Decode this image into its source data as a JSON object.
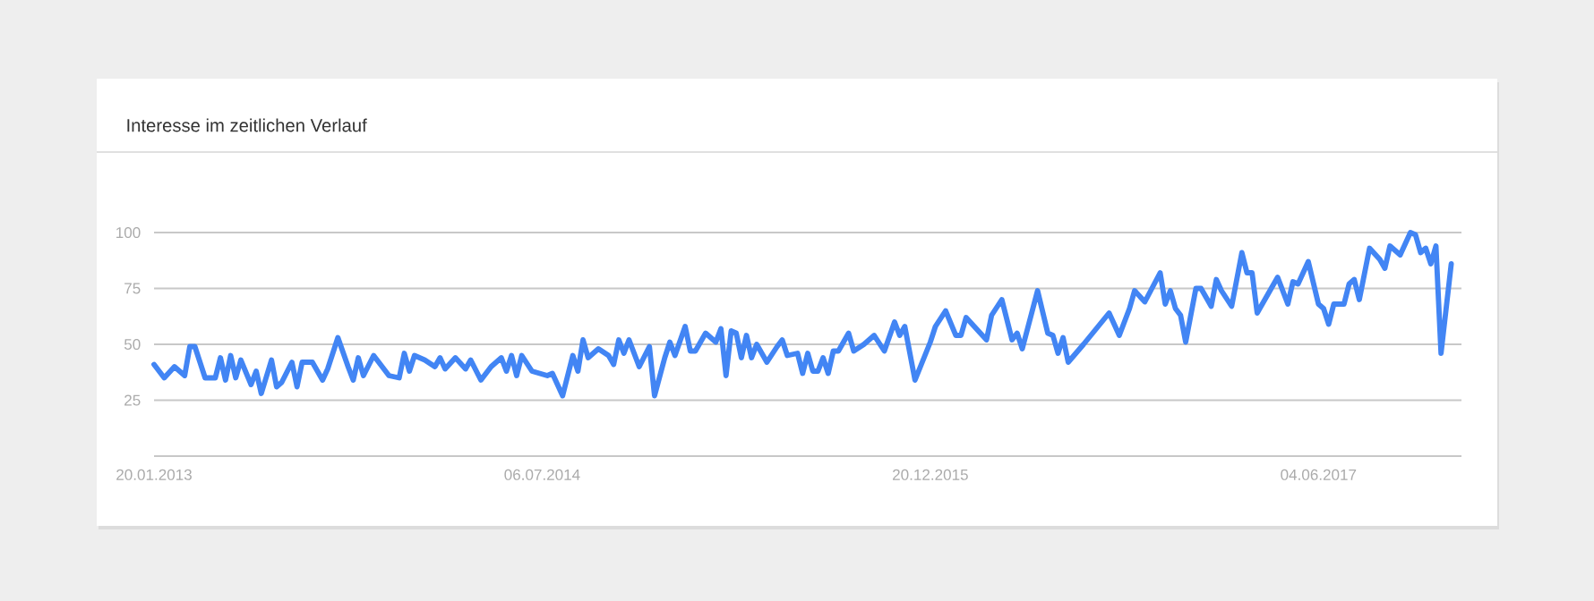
{
  "chart_data": {
    "type": "line",
    "title": "Interesse im zeitlichen Verlauf",
    "x": [
      "2013-01-20",
      "2013-02-03",
      "2013-02-17",
      "2013-03-03",
      "2013-03-10",
      "2013-03-17",
      "2013-03-31",
      "2013-04-14",
      "2013-04-21",
      "2013-04-28",
      "2013-05-05",
      "2013-05-12",
      "2013-05-19",
      "2013-06-02",
      "2013-06-09",
      "2013-06-16",
      "2013-06-30",
      "2013-07-07",
      "2013-07-14",
      "2013-07-28",
      "2013-08-04",
      "2013-08-11",
      "2013-08-25",
      "2013-09-08",
      "2013-09-15",
      "2013-09-29",
      "2013-10-13",
      "2013-10-20",
      "2013-10-27",
      "2013-11-03",
      "2013-11-17",
      "2013-12-08",
      "2013-12-22",
      "2013-12-29",
      "2014-01-05",
      "2014-01-12",
      "2014-01-26",
      "2014-02-09",
      "2014-02-16",
      "2014-02-23",
      "2014-03-09",
      "2014-03-23",
      "2014-03-30",
      "2014-04-13",
      "2014-04-27",
      "2014-05-11",
      "2014-05-18",
      "2014-05-25",
      "2014-06-01",
      "2014-06-08",
      "2014-06-22",
      "2014-07-13",
      "2014-07-20",
      "2014-08-03",
      "2014-08-17",
      "2014-08-24",
      "2014-08-31",
      "2014-09-07",
      "2014-09-21",
      "2014-10-05",
      "2014-10-12",
      "2014-10-19",
      "2014-10-26",
      "2014-11-02",
      "2014-11-16",
      "2014-11-30",
      "2014-12-07",
      "2014-12-21",
      "2014-12-28",
      "2015-01-04",
      "2015-01-18",
      "2015-01-25",
      "2015-02-01",
      "2015-02-15",
      "2015-03-01",
      "2015-03-08",
      "2015-03-15",
      "2015-03-22",
      "2015-03-29",
      "2015-04-05",
      "2015-04-12",
      "2015-04-19",
      "2015-04-26",
      "2015-05-10",
      "2015-05-24",
      "2015-05-31",
      "2015-06-07",
      "2015-06-21",
      "2015-06-28",
      "2015-07-05",
      "2015-07-12",
      "2015-07-19",
      "2015-07-26",
      "2015-08-02",
      "2015-08-09",
      "2015-08-16",
      "2015-08-30",
      "2015-09-06",
      "2015-09-20",
      "2015-10-04",
      "2015-10-18",
      "2015-11-01",
      "2015-11-08",
      "2015-11-15",
      "2015-11-29",
      "2015-12-20",
      "2015-12-27",
      "2016-01-10",
      "2016-01-24",
      "2016-01-31",
      "2016-02-07",
      "2016-03-06",
      "2016-03-13",
      "2016-03-27",
      "2016-04-10",
      "2016-04-17",
      "2016-04-24",
      "2016-05-15",
      "2016-05-29",
      "2016-06-05",
      "2016-06-12",
      "2016-06-19",
      "2016-06-26",
      "2016-07-17",
      "2016-08-21",
      "2016-09-04",
      "2016-09-18",
      "2016-09-25",
      "2016-10-09",
      "2016-10-30",
      "2016-11-06",
      "2016-11-13",
      "2016-11-20",
      "2016-11-27",
      "2016-12-04",
      "2016-12-18",
      "2016-12-25",
      "2017-01-08",
      "2017-01-15",
      "2017-01-22",
      "2017-02-05",
      "2017-02-19",
      "2017-02-26",
      "2017-03-05",
      "2017-03-12",
      "2017-04-02",
      "2017-04-09",
      "2017-04-23",
      "2017-04-30",
      "2017-05-07",
      "2017-05-21",
      "2017-06-04",
      "2017-06-11",
      "2017-06-18",
      "2017-06-25",
      "2017-07-09",
      "2017-07-16",
      "2017-07-23",
      "2017-07-30",
      "2017-08-13",
      "2017-08-27",
      "2017-09-03",
      "2017-09-10",
      "2017-09-24",
      "2017-10-08",
      "2017-10-15",
      "2017-10-22",
      "2017-10-29",
      "2017-11-05",
      "2017-11-12",
      "2017-11-19",
      "2017-12-03"
    ],
    "series": [
      {
        "color": "#4285f4",
        "values": [
          41,
          35,
          40,
          36,
          49,
          49,
          35,
          35,
          44,
          34,
          45,
          35,
          43,
          32,
          38,
          28,
          43,
          31,
          33,
          42,
          31,
          42,
          42,
          34,
          39,
          53,
          40,
          34,
          44,
          36,
          45,
          36,
          35,
          46,
          38,
          45,
          43,
          40,
          44,
          39,
          44,
          39,
          43,
          34,
          40,
          44,
          38,
          45,
          36,
          45,
          38,
          36,
          37,
          27,
          45,
          38,
          52,
          44,
          48,
          45,
          41,
          52,
          46,
          52,
          40,
          49,
          27,
          44,
          51,
          45,
          58,
          47,
          47,
          55,
          51,
          57,
          36,
          56,
          55,
          44,
          54,
          44,
          50,
          42,
          49,
          52,
          45,
          46,
          37,
          46,
          38,
          38,
          44,
          37,
          47,
          47,
          55,
          47,
          50,
          54,
          47,
          60,
          54,
          58,
          34,
          51,
          58,
          65,
          54,
          54,
          62,
          52,
          63,
          70,
          52,
          55,
          48,
          74,
          55,
          54,
          46,
          53,
          42,
          50,
          64,
          54,
          66,
          74,
          69,
          82,
          68,
          74,
          66,
          63,
          51,
          75,
          75,
          67,
          79,
          74,
          67,
          91,
          82,
          82,
          64,
          76,
          80,
          68,
          78,
          77,
          87,
          68,
          66,
          59,
          68,
          68,
          77,
          79,
          70,
          93,
          88,
          84,
          94,
          90,
          100,
          99,
          91,
          93,
          86,
          94,
          46,
          86
        ]
      }
    ],
    "xlim": [
      "2013-01-20",
      "2017-12-17"
    ],
    "xticks": [
      {
        "value": "2013-01-20",
        "label": "20.01.2013"
      },
      {
        "value": "2014-07-06",
        "label": "06.07.2014"
      },
      {
        "value": "2015-12-20",
        "label": "20.12.2015"
      },
      {
        "value": "2017-06-04",
        "label": "04.06.2017"
      }
    ],
    "ylim": [
      0,
      100
    ],
    "yticks": [
      25,
      50,
      75,
      100
    ],
    "grid": "y"
  }
}
